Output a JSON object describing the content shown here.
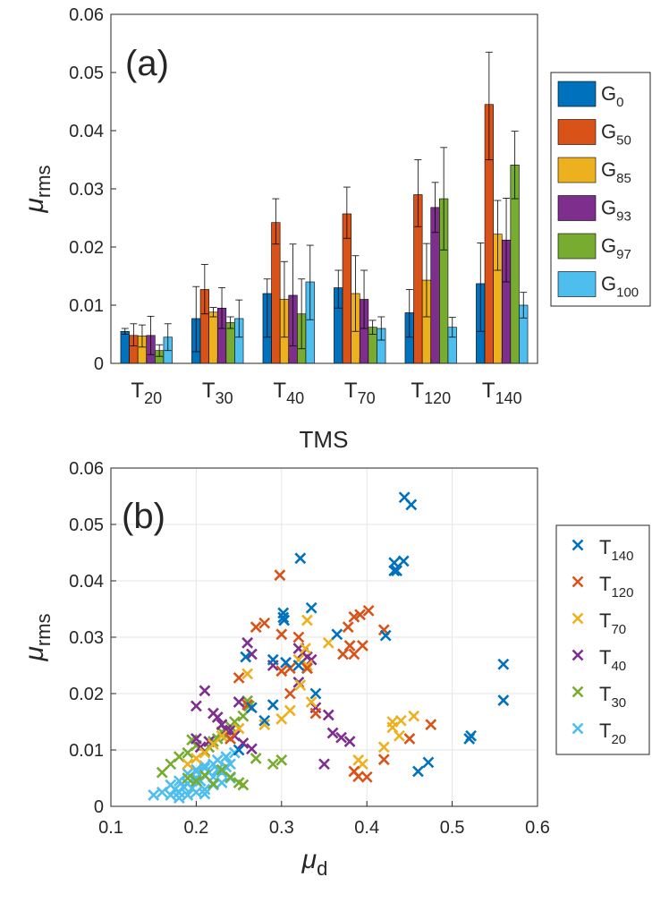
{
  "chart_data": [
    {
      "type": "bar",
      "panel_label": "(a)",
      "xlabel": "TMS",
      "ylabel": "μ",
      "ylabel_sub": "rms",
      "ylim": [
        0,
        0.06
      ],
      "yticks": [
        "0",
        "0.01",
        "0.02",
        "0.03",
        "0.04",
        "0.05",
        "0.06"
      ],
      "ytick_values": [
        0,
        0.01,
        0.02,
        0.03,
        0.04,
        0.05,
        0.06
      ],
      "grid": false,
      "legend_position": "right-outside",
      "categories": [
        {
          "main": "T",
          "sub": "20"
        },
        {
          "main": "T",
          "sub": "30"
        },
        {
          "main": "T",
          "sub": "40"
        },
        {
          "main": "T",
          "sub": "70"
        },
        {
          "main": "T",
          "sub": "120"
        },
        {
          "main": "T",
          "sub": "140"
        }
      ],
      "series": [
        {
          "main": "G",
          "sub": "0",
          "color": "#0072BD",
          "values": [
            0.0055,
            0.0077,
            0.012,
            0.013,
            0.0087,
            0.0137
          ],
          "err_low": [
            0.005,
            0.002,
            0.0045,
            0.0095,
            0.0045,
            0.0055
          ],
          "err_high": [
            0.006,
            0.0132,
            0.0145,
            0.016,
            0.0127,
            0.0207
          ]
        },
        {
          "main": "G",
          "sub": "50",
          "color": "#D95319",
          "values": [
            0.0048,
            0.0127,
            0.0242,
            0.0257,
            0.029,
            0.0445
          ],
          "err_low": [
            0.003,
            0.0085,
            0.0205,
            0.0215,
            0.0235,
            0.035
          ],
          "err_high": [
            0.0068,
            0.017,
            0.0283,
            0.0303,
            0.035,
            0.0535
          ]
        },
        {
          "main": "G",
          "sub": "85",
          "color": "#EDB120",
          "values": [
            0.0047,
            0.0088,
            0.011,
            0.012,
            0.0143,
            0.0222
          ],
          "err_low": [
            0.0028,
            0.008,
            0.0045,
            0.0055,
            0.008,
            0.016
          ],
          "err_high": [
            0.0066,
            0.0096,
            0.0175,
            0.0185,
            0.0206,
            0.028
          ]
        },
        {
          "main": "G",
          "sub": "93",
          "color": "#7E2F8E",
          "values": [
            0.0048,
            0.0095,
            0.0117,
            0.011,
            0.0268,
            0.0212
          ],
          "err_low": [
            0.0015,
            0.006,
            0.003,
            0.006,
            0.0225,
            0.014
          ],
          "err_high": [
            0.0081,
            0.013,
            0.0205,
            0.016,
            0.0311,
            0.0284
          ]
        },
        {
          "main": "G",
          "sub": "97",
          "color": "#77AC30",
          "values": [
            0.0022,
            0.007,
            0.0085,
            0.0062,
            0.0283,
            0.0341
          ],
          "err_low": [
            0.0012,
            0.006,
            0.0025,
            0.005,
            0.0195,
            0.0283
          ],
          "err_high": [
            0.0032,
            0.008,
            0.0145,
            0.0074,
            0.0371,
            0.0399
          ]
        },
        {
          "main": "G",
          "sub": "100",
          "color": "#4DBEEE",
          "values": [
            0.0045,
            0.0077,
            0.014,
            0.006,
            0.0062,
            0.01
          ],
          "err_low": [
            0.0022,
            0.0045,
            0.0075,
            0.004,
            0.0045,
            0.0078
          ],
          "err_high": [
            0.0068,
            0.0109,
            0.0203,
            0.008,
            0.0079,
            0.0122
          ]
        }
      ]
    },
    {
      "type": "scatter",
      "panel_label": "(b)",
      "xlabel": "μ",
      "xlabel_sub": "d",
      "ylabel": "μ",
      "ylabel_sub": "rms",
      "xlim": [
        0.1,
        0.6
      ],
      "ylim": [
        0,
        0.06
      ],
      "xticks": [
        "0.1",
        "0.2",
        "0.3",
        "0.4",
        "0.5",
        "0.6"
      ],
      "xtick_values": [
        0.1,
        0.2,
        0.3,
        0.4,
        0.5,
        0.6
      ],
      "yticks": [
        "0",
        "0.01",
        "0.02",
        "0.03",
        "0.04",
        "0.05",
        "0.06"
      ],
      "ytick_values": [
        0,
        0.01,
        0.02,
        0.03,
        0.04,
        0.05,
        0.06
      ],
      "grid": true,
      "marker": "x",
      "legend_position": "right-outside",
      "series": [
        {
          "main": "T",
          "sub": "140",
          "color": "#0072BD",
          "x": [
            0.444,
            0.452,
            0.443,
            0.432,
            0.435,
            0.432,
            0.422,
            0.322,
            0.302,
            0.302,
            0.303,
            0.335,
            0.365,
            0.34,
            0.258,
            0.265,
            0.28,
            0.29,
            0.56,
            0.56,
            0.52,
            0.522,
            0.472,
            0.46,
            0.305,
            0.32,
            0.29,
            0.25
          ],
          "y": [
            0.0548,
            0.0535,
            0.0435,
            0.0432,
            0.0418,
            0.0418,
            0.0303,
            0.044,
            0.0343,
            0.0335,
            0.033,
            0.0352,
            0.0305,
            0.02,
            0.0265,
            0.0175,
            0.0152,
            0.026,
            0.0252,
            0.0188,
            0.012,
            0.0125,
            0.0078,
            0.0062,
            0.0255,
            0.025,
            0.018,
            0.01
          ]
        },
        {
          "main": "T",
          "sub": "120",
          "color": "#D95319",
          "x": [
            0.298,
            0.392,
            0.402,
            0.385,
            0.378,
            0.42,
            0.395,
            0.38,
            0.372,
            0.385,
            0.475,
            0.45,
            0.42,
            0.385,
            0.39,
            0.4,
            0.3,
            0.31,
            0.32,
            0.33,
            0.34,
            0.28,
            0.27,
            0.3,
            0.31,
            0.25,
            0.26,
            0.24
          ],
          "y": [
            0.041,
            0.034,
            0.0347,
            0.0336,
            0.0318,
            0.0313,
            0.0285,
            0.0285,
            0.027,
            0.027,
            0.0145,
            0.012,
            0.0083,
            0.0062,
            0.0053,
            0.0052,
            0.024,
            0.0245,
            0.03,
            0.0245,
            0.0165,
            0.0325,
            0.0318,
            0.0305,
            0.02,
            0.0228,
            0.018,
            0.012
          ]
        },
        {
          "main": "T",
          "sub": "70",
          "color": "#EDB120",
          "x": [
            0.33,
            0.328,
            0.32,
            0.33,
            0.322,
            0.335,
            0.31,
            0.455,
            0.44,
            0.43,
            0.43,
            0.438,
            0.42,
            0.39,
            0.395,
            0.355,
            0.3,
            0.28,
            0.26,
            0.25,
            0.24,
            0.23,
            0.22,
            0.21,
            0.2,
            0.19
          ],
          "y": [
            0.033,
            0.028,
            0.026,
            0.025,
            0.0215,
            0.0185,
            0.017,
            0.016,
            0.0152,
            0.015,
            0.014,
            0.0125,
            0.0105,
            0.0082,
            0.0075,
            0.029,
            0.0155,
            0.0145,
            0.0235,
            0.0138,
            0.012,
            0.0125,
            0.011,
            0.0095,
            0.0085,
            0.0075
          ]
        },
        {
          "main": "T",
          "sub": "40",
          "color": "#7E2F8E",
          "x": [
            0.26,
            0.265,
            0.29,
            0.32,
            0.325,
            0.33,
            0.335,
            0.33,
            0.32,
            0.355,
            0.36,
            0.35,
            0.38,
            0.37,
            0.34,
            0.21,
            0.2,
            0.22,
            0.225,
            0.23,
            0.24,
            0.25,
            0.2,
            0.215,
            0.205,
            0.235,
            0.245,
            0.255,
            0.265
          ],
          "y": [
            0.029,
            0.027,
            0.025,
            0.028,
            0.0272,
            0.0265,
            0.026,
            0.0245,
            0.022,
            0.0162,
            0.013,
            0.0075,
            0.0115,
            0.0122,
            0.0175,
            0.0205,
            0.0178,
            0.0165,
            0.0158,
            0.0145,
            0.0135,
            0.0185,
            0.012,
            0.0115,
            0.0105,
            0.0135,
            0.0125,
            0.0112,
            0.0102
          ]
        },
        {
          "main": "T",
          "sub": "30",
          "color": "#77AC30",
          "x": [
            0.26,
            0.262,
            0.255,
            0.245,
            0.24,
            0.23,
            0.235,
            0.225,
            0.22,
            0.215,
            0.21,
            0.2,
            0.195,
            0.19,
            0.18,
            0.17,
            0.16,
            0.19,
            0.2,
            0.21,
            0.23,
            0.25,
            0.27,
            0.29,
            0.3,
            0.22,
            0.24,
            0.255
          ],
          "y": [
            0.0187,
            0.0178,
            0.016,
            0.015,
            0.0142,
            0.0132,
            0.0125,
            0.012,
            0.0115,
            0.0105,
            0.0098,
            0.0108,
            0.0118,
            0.0095,
            0.0088,
            0.0075,
            0.006,
            0.005,
            0.0045,
            0.0055,
            0.0065,
            0.0042,
            0.0085,
            0.0075,
            0.0082,
            0.004,
            0.0052,
            0.0038
          ]
        },
        {
          "main": "T",
          "sub": "20",
          "color": "#4DBEEE",
          "x": [
            0.15,
            0.16,
            0.17,
            0.175,
            0.18,
            0.185,
            0.19,
            0.195,
            0.2,
            0.205,
            0.21,
            0.215,
            0.22,
            0.225,
            0.23,
            0.235,
            0.24,
            0.18,
            0.19,
            0.2,
            0.21,
            0.22,
            0.23,
            0.2,
            0.21,
            0.22,
            0.19,
            0.2,
            0.21,
            0.225,
            0.235,
            0.245,
            0.24,
            0.17,
            0.18,
            0.21
          ],
          "y": [
            0.002,
            0.0025,
            0.002,
            0.003,
            0.0025,
            0.0035,
            0.004,
            0.0032,
            0.005,
            0.0045,
            0.0055,
            0.006,
            0.0052,
            0.0065,
            0.006,
            0.007,
            0.0075,
            0.0015,
            0.002,
            0.0025,
            0.003,
            0.0038,
            0.0042,
            0.0062,
            0.0068,
            0.0075,
            0.0058,
            0.0065,
            0.0072,
            0.0082,
            0.0088,
            0.0095,
            0.005,
            0.0038,
            0.0045,
            0.0022
          ]
        }
      ]
    }
  ]
}
